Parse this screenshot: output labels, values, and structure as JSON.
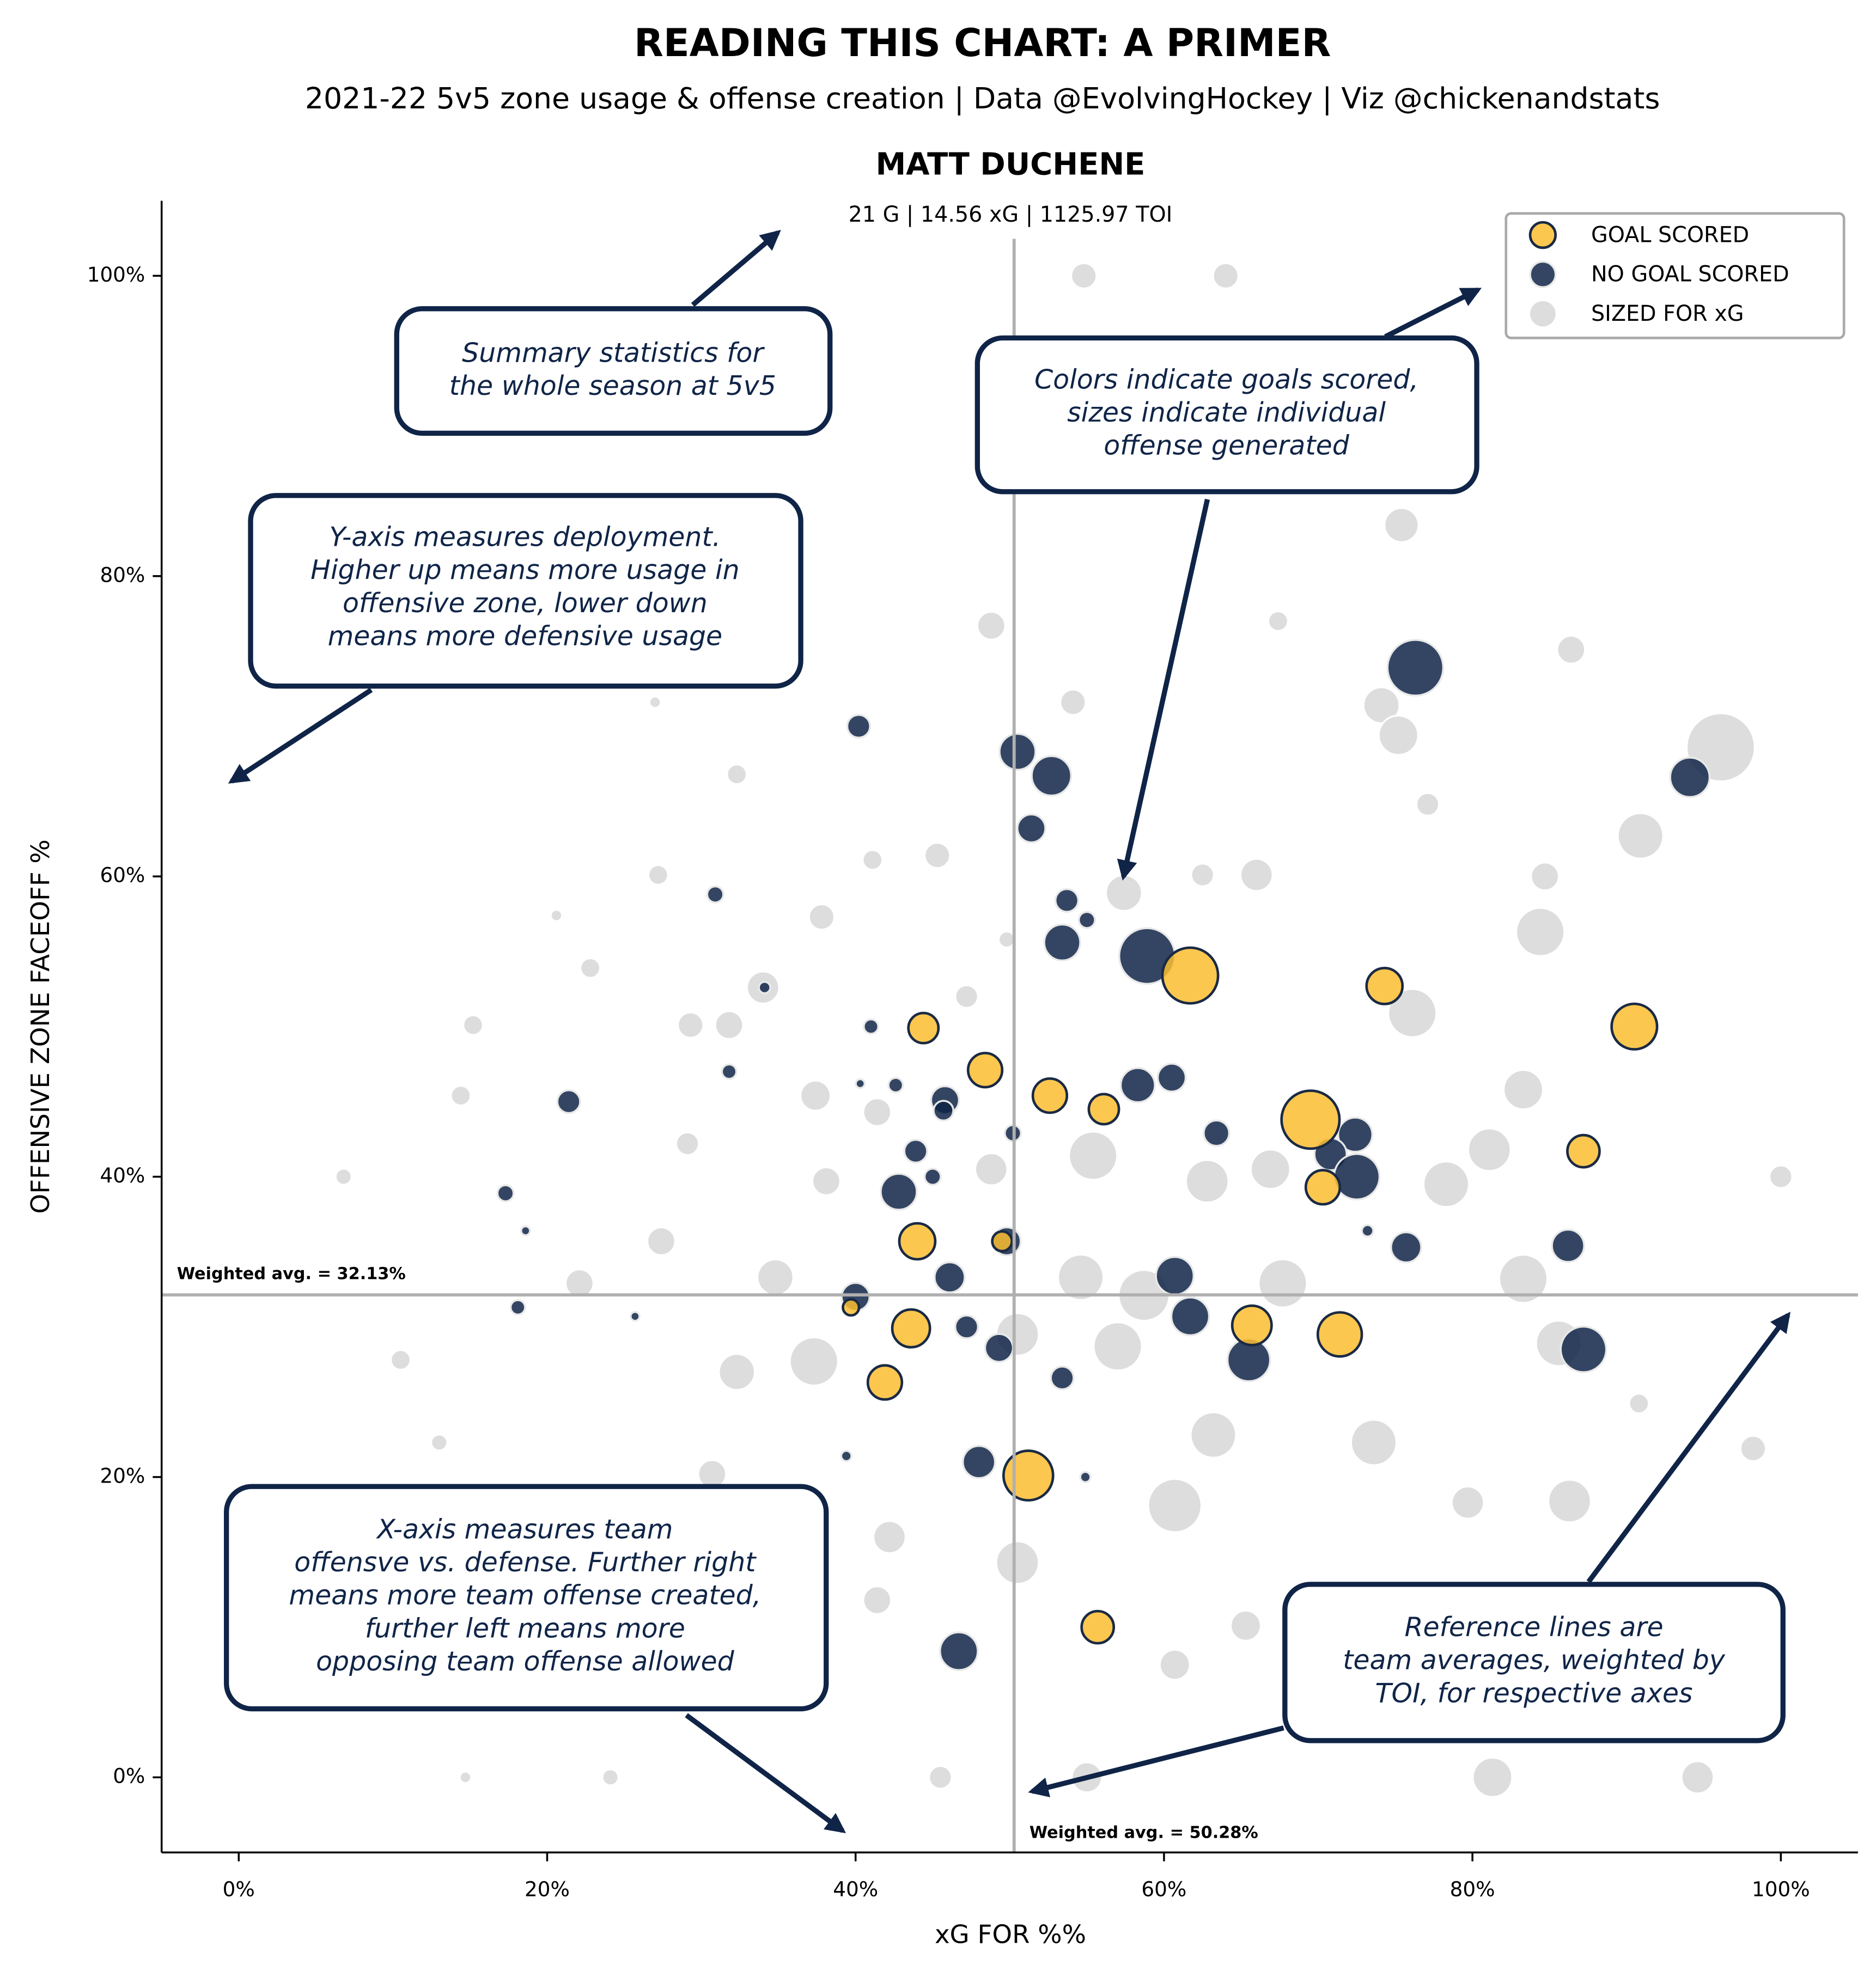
{
  "chart_data": {
    "type": "scatter",
    "title": "READING THIS CHART: A PRIMER",
    "subtitle": "2021-22 5v5 zone usage & offense creation | Data @EvolvingHockey | Viz @chickenandstats",
    "chart_title": "MATT DUCHENE",
    "stats": "21 G |  14.56 xG | 1125.97 TOI",
    "xlabel": "xG FOR %%",
    "ylabel": "OFFENSIVE ZONE FACEOFF %",
    "xlim": [
      -5,
      105
    ],
    "ylim": [
      -5,
      105
    ],
    "xticks": [
      {
        "value": 0,
        "label": "0%"
      },
      {
        "value": 20,
        "label": "20%"
      },
      {
        "value": 40,
        "label": "40%"
      },
      {
        "value": 60,
        "label": "60%"
      },
      {
        "value": 80,
        "label": "80%"
      },
      {
        "value": 100,
        "label": "100%"
      }
    ],
    "yticks": [
      {
        "value": 0,
        "label": "0%"
      },
      {
        "value": 20,
        "label": "20%"
      },
      {
        "value": 40,
        "label": "40%"
      },
      {
        "value": 60,
        "label": "60%"
      },
      {
        "value": 80,
        "label": "80%"
      },
      {
        "value": 100,
        "label": "100%"
      }
    ],
    "grid": false,
    "legend": "upper right",
    "reference_lines": [
      {
        "axis": "x",
        "value": 50.28,
        "label": "Weighted avg. = 50.28%"
      },
      {
        "axis": "y",
        "value": 32.13,
        "label": "Weighted avg. = 32.13%"
      }
    ],
    "series": [
      {
        "name": "SIZED FOR xG",
        "color": "#d9d9d9",
        "x": [
          54.8,
          64.0,
          48.8,
          75.4,
          67.4,
          86.4,
          74.1,
          75.2,
          96.1,
          90.9,
          84.7,
          84.4,
          54.1,
          57.4,
          66.0,
          62.5,
          45.3,
          41.1,
          37.8,
          32.3,
          27.2,
          22.8,
          14.4,
          15.2,
          29.3,
          31.8,
          34.0,
          37.4,
          41.4,
          47.2,
          76.1,
          83.3,
          81.1,
          100.0,
          78.3,
          83.3,
          85.6,
          73.6,
          79.7,
          86.3,
          81.3,
          94.6,
          55.0,
          45.5,
          24.1,
          14.7,
          10.5,
          6.8,
          27.4,
          34.8,
          37.3,
          50.5,
          57.0,
          60.7,
          63.2,
          50.5,
          42.2,
          67.7,
          58.7,
          54.6,
          55.4,
          62.8,
          66.9,
          48.8,
          38.1,
          29.1,
          22.1,
          32.3,
          30.7,
          41.4,
          65.3,
          60.7,
          74.3,
          90.8,
          98.2,
          77.1,
          49.8,
          27.0,
          20.6,
          13.0
        ],
        "values": [
          100,
          100,
          76.7,
          83.4,
          77.0,
          75.1,
          71.4,
          69.4,
          68.6,
          62.7,
          60.0,
          56.3,
          71.6,
          58.9,
          60.1,
          60.1,
          61.4,
          61.1,
          57.3,
          66.8,
          60.1,
          53.9,
          45.4,
          50.1,
          50.1,
          50.1,
          52.6,
          45.4,
          44.3,
          52.0,
          50.9,
          45.8,
          41.8,
          40.0,
          39.5,
          33.2,
          28.9,
          22.3,
          18.3,
          18.4,
          0,
          0,
          0,
          0,
          0,
          0,
          27.8,
          40.0,
          35.7,
          33.3,
          27.7,
          29.5,
          28.7,
          18.1,
          22.8,
          14.3,
          16.0,
          32.9,
          32.1,
          33.3,
          41.4,
          39.7,
          40.5,
          40.5,
          39.7,
          42.2,
          32.9,
          27.0,
          20.2,
          11.8,
          10.1,
          7.5,
          7.5,
          24.9,
          21.9,
          64.8,
          55.8,
          71.6,
          57.4,
          22.3
        ],
        "sizes": [
          0.25,
          0.25,
          0.3,
          0.45,
          0.15,
          0.3,
          0.5,
          0.6,
          1.8,
          0.8,
          0.3,
          0.9,
          0.25,
          0.5,
          0.4,
          0.2,
          0.25,
          0.15,
          0.25,
          0.15,
          0.15,
          0.15,
          0.15,
          0.15,
          0.25,
          0.3,
          0.4,
          0.35,
          0.3,
          0.2,
          0.9,
          0.6,
          0.7,
          0.2,
          0.8,
          0.9,
          0.8,
          0.8,
          0.4,
          0.7,
          0.6,
          0.4,
          0.35,
          0.2,
          0.1,
          0.05,
          0.15,
          0.1,
          0.3,
          0.5,
          0.9,
          0.7,
          0.9,
          1.1,
          0.8,
          0.7,
          0.4,
          0.9,
          1.0,
          0.8,
          0.9,
          0.7,
          0.6,
          0.4,
          0.3,
          0.2,
          0.3,
          0.5,
          0.3,
          0.3,
          0.35,
          0.35,
          0.3,
          0.15,
          0.25,
          0.2,
          0.1,
          0.05,
          0.05,
          0.1
        ]
      },
      {
        "name": "NO GOAL SCORED",
        "color": "#0f2447",
        "x": [
          40.2,
          50.5,
          52.7,
          76.3,
          94.1,
          51.4,
          53.7,
          55.0,
          53.4,
          58.9,
          30.9,
          34.1,
          41.0,
          31.8,
          21.4,
          40.3,
          42.6,
          45.8,
          45.7,
          58.3,
          60.5,
          50.2,
          63.4,
          43.9,
          45.0,
          72.4,
          70.8,
          72.5,
          42.8,
          17.3,
          18.6,
          73.2,
          75.7,
          86.2,
          49.8,
          46.1,
          60.7,
          40.0,
          18.1,
          25.7,
          61.7,
          47.2,
          49.3,
          65.5,
          87.2,
          53.4,
          39.4,
          48.0,
          54.9,
          46.7
        ],
        "values": [
          70.0,
          68.3,
          66.7,
          73.9,
          66.6,
          63.2,
          58.4,
          57.1,
          55.6,
          54.7,
          58.8,
          52.6,
          50.0,
          47.0,
          45.0,
          46.2,
          46.1,
          45.1,
          44.4,
          46.1,
          46.6,
          42.9,
          42.9,
          41.7,
          40.0,
          42.8,
          41.5,
          40.0,
          39.0,
          38.9,
          36.4,
          36.4,
          35.3,
          35.4,
          35.7,
          33.3,
          33.4,
          32.0,
          31.3,
          30.7,
          30.7,
          30.0,
          28.6,
          27.8,
          28.5,
          26.6,
          21.4,
          21.0,
          20.0,
          8.4
        ],
        "sizes": [
          0.2,
          0.5,
          0.6,
          1.2,
          0.6,
          0.3,
          0.2,
          0.1,
          0.5,
          1.2,
          0.1,
          0.05,
          0.08,
          0.08,
          0.2,
          0.03,
          0.08,
          0.3,
          0.15,
          0.45,
          0.3,
          0.1,
          0.25,
          0.2,
          0.1,
          0.45,
          0.4,
          0.8,
          0.5,
          0.1,
          0.03,
          0.05,
          0.35,
          0.4,
          0.3,
          0.35,
          0.55,
          0.3,
          0.08,
          0.03,
          0.55,
          0.2,
          0.3,
          0.7,
          0.8,
          0.2,
          0.04,
          0.4,
          0.04,
          0.55
        ]
      },
      {
        "name": "GOAL SCORED",
        "color": "#fbbd30",
        "x": [
          44.4,
          48.4,
          52.6,
          56.1,
          61.7,
          74.3,
          90.5,
          69.5,
          70.3,
          87.2,
          44.0,
          49.5,
          39.7,
          43.6,
          65.7,
          71.4,
          41.9,
          51.2,
          55.7
        ],
        "values": [
          49.9,
          47.1,
          45.4,
          44.5,
          53.4,
          52.7,
          50.0,
          43.8,
          39.3,
          41.7,
          35.7,
          35.7,
          31.3,
          29.9,
          30.1,
          29.5,
          26.3,
          20.1,
          10.0
        ],
        "sizes": [
          0.35,
          0.45,
          0.45,
          0.35,
          1.2,
          0.5,
          0.8,
          1.3,
          0.45,
          0.4,
          0.5,
          0.15,
          0.1,
          0.55,
          0.6,
          0.75,
          0.45,
          0.95,
          0.4
        ]
      }
    ],
    "annotations": [
      {
        "lines": [
          "Summary statistics for",
          "the whole season at 5v5"
        ]
      },
      {
        "lines": [
          "Colors indicate goals scored,",
          "sizes indicate individual",
          "offense generated"
        ]
      },
      {
        "lines": [
          "Y-axis measures deployment.",
          "Higher up means more usage in",
          "offensive zone, lower down",
          "means more defensive usage"
        ]
      },
      {
        "lines": [
          "X-axis measures team",
          "offensve vs. defense. Further right",
          "means more team offense created,",
          "further left means more",
          "opposing team offense allowed"
        ]
      },
      {
        "lines": [
          "Reference lines are",
          "team averages, weighted by",
          "TOI, for respective axes"
        ]
      }
    ]
  }
}
